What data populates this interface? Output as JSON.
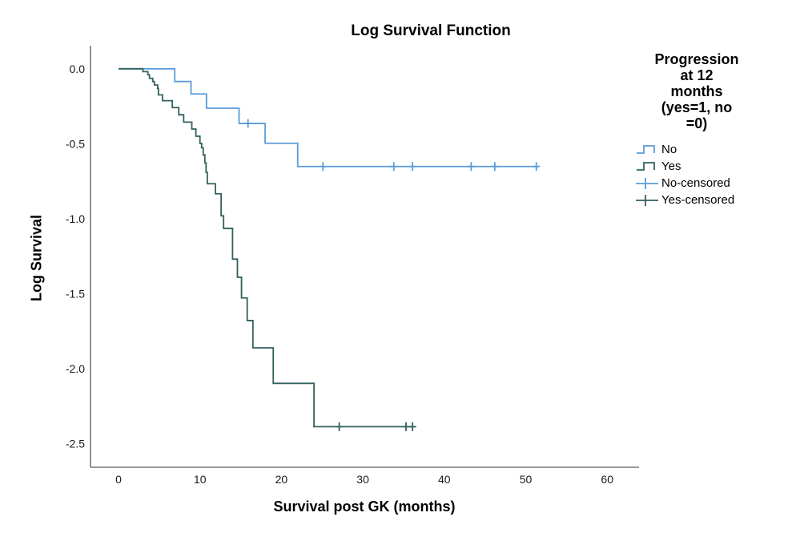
{
  "title": "Log Survival Function",
  "axes": {
    "x": {
      "label": "Survival post GK (months)",
      "tick_labels": [
        "0",
        "10",
        "20",
        "30",
        "40",
        "50",
        "60"
      ],
      "tick_values": [
        0,
        10,
        20,
        30,
        40,
        50,
        60
      ]
    },
    "y": {
      "label": "Log Survival",
      "tick_labels": [
        "0.0",
        "-0.5",
        "-1.0",
        "-1.5",
        "-2.0",
        "-2.5"
      ],
      "tick_values": [
        0,
        -0.5,
        -1.0,
        -1.5,
        -2.0,
        -2.5
      ]
    }
  },
  "legend": {
    "title_text": "Progression\nat 12\nmonths\n(yes=1, no\n=0)",
    "items": [
      {
        "label": "No",
        "swatch": "step-line",
        "color": "#5b9cd8"
      },
      {
        "label": "Yes",
        "swatch": "step-line",
        "color": "#31605d"
      },
      {
        "label": "No-censored",
        "swatch": "censor-plus",
        "color": "#5b9cd8"
      },
      {
        "label": "Yes-censored",
        "swatch": "censor-plus",
        "color": "#31605d"
      }
    ]
  },
  "colors": {
    "no_curve": "#5b9cd8",
    "yes_curve": "#31605d",
    "axis_line": "#5a5a5a",
    "tick_text": "#1a1a1a"
  },
  "chart_data": {
    "type": "line",
    "subtype": "step-survival",
    "title": "Log Survival Function",
    "xlabel": "Survival post GK (months)",
    "ylabel": "Log Survival",
    "xlim": [
      0,
      64
    ],
    "ylim": [
      -2.65,
      0.16
    ],
    "x_ticks": [
      0,
      10,
      20,
      30,
      40,
      50,
      60
    ],
    "y_ticks": [
      0,
      -0.5,
      -1.0,
      -1.5,
      -2.0,
      -2.5
    ],
    "grid": false,
    "legend_position": "right",
    "series": [
      {
        "name": "No",
        "color": "#5b9cd8",
        "start": [
          0,
          0
        ],
        "drops": [
          [
            6.9,
            -0.085
          ],
          [
            8.9,
            -0.168
          ],
          [
            10.8,
            -0.263
          ],
          [
            14.8,
            -0.365
          ],
          [
            18.0,
            -0.497
          ],
          [
            22.0,
            -0.652
          ]
        ],
        "end_t": 51.5,
        "censors": [
          [
            15.9,
            -0.365
          ],
          [
            25.1,
            -0.652
          ],
          [
            33.8,
            -0.652
          ],
          [
            36.1,
            -0.652
          ],
          [
            43.3,
            -0.652
          ],
          [
            46.2,
            -0.652
          ],
          [
            51.3,
            -0.652
          ]
        ]
      },
      {
        "name": "Yes",
        "color": "#31605d",
        "start": [
          0,
          0
        ],
        "drops": [
          [
            3.0,
            -0.019
          ],
          [
            3.6,
            -0.04
          ],
          [
            3.8,
            -0.064
          ],
          [
            4.2,
            -0.085
          ],
          [
            4.4,
            -0.108
          ],
          [
            4.8,
            -0.131
          ],
          [
            4.9,
            -0.174
          ],
          [
            5.4,
            -0.213
          ],
          [
            6.6,
            -0.259
          ],
          [
            7.4,
            -0.307
          ],
          [
            8.0,
            -0.356
          ],
          [
            9.0,
            -0.402
          ],
          [
            9.5,
            -0.45
          ],
          [
            10.0,
            -0.498
          ],
          [
            10.2,
            -0.527
          ],
          [
            10.4,
            -0.575
          ],
          [
            10.6,
            -0.628
          ],
          [
            10.75,
            -0.691
          ],
          [
            10.9,
            -0.767
          ],
          [
            11.9,
            -0.834
          ],
          [
            12.6,
            -0.981
          ],
          [
            12.9,
            -1.065
          ],
          [
            14.0,
            -1.27
          ],
          [
            14.6,
            -1.391
          ],
          [
            15.1,
            -1.529
          ],
          [
            15.8,
            -1.68
          ],
          [
            16.5,
            -1.862
          ],
          [
            19.0,
            -2.099
          ],
          [
            24.0,
            -2.388
          ]
        ],
        "end_t": 36.5,
        "censors": [
          [
            27.1,
            -2.388
          ],
          [
            35.3,
            -2.388
          ],
          [
            36.1,
            -2.388
          ]
        ]
      }
    ]
  }
}
